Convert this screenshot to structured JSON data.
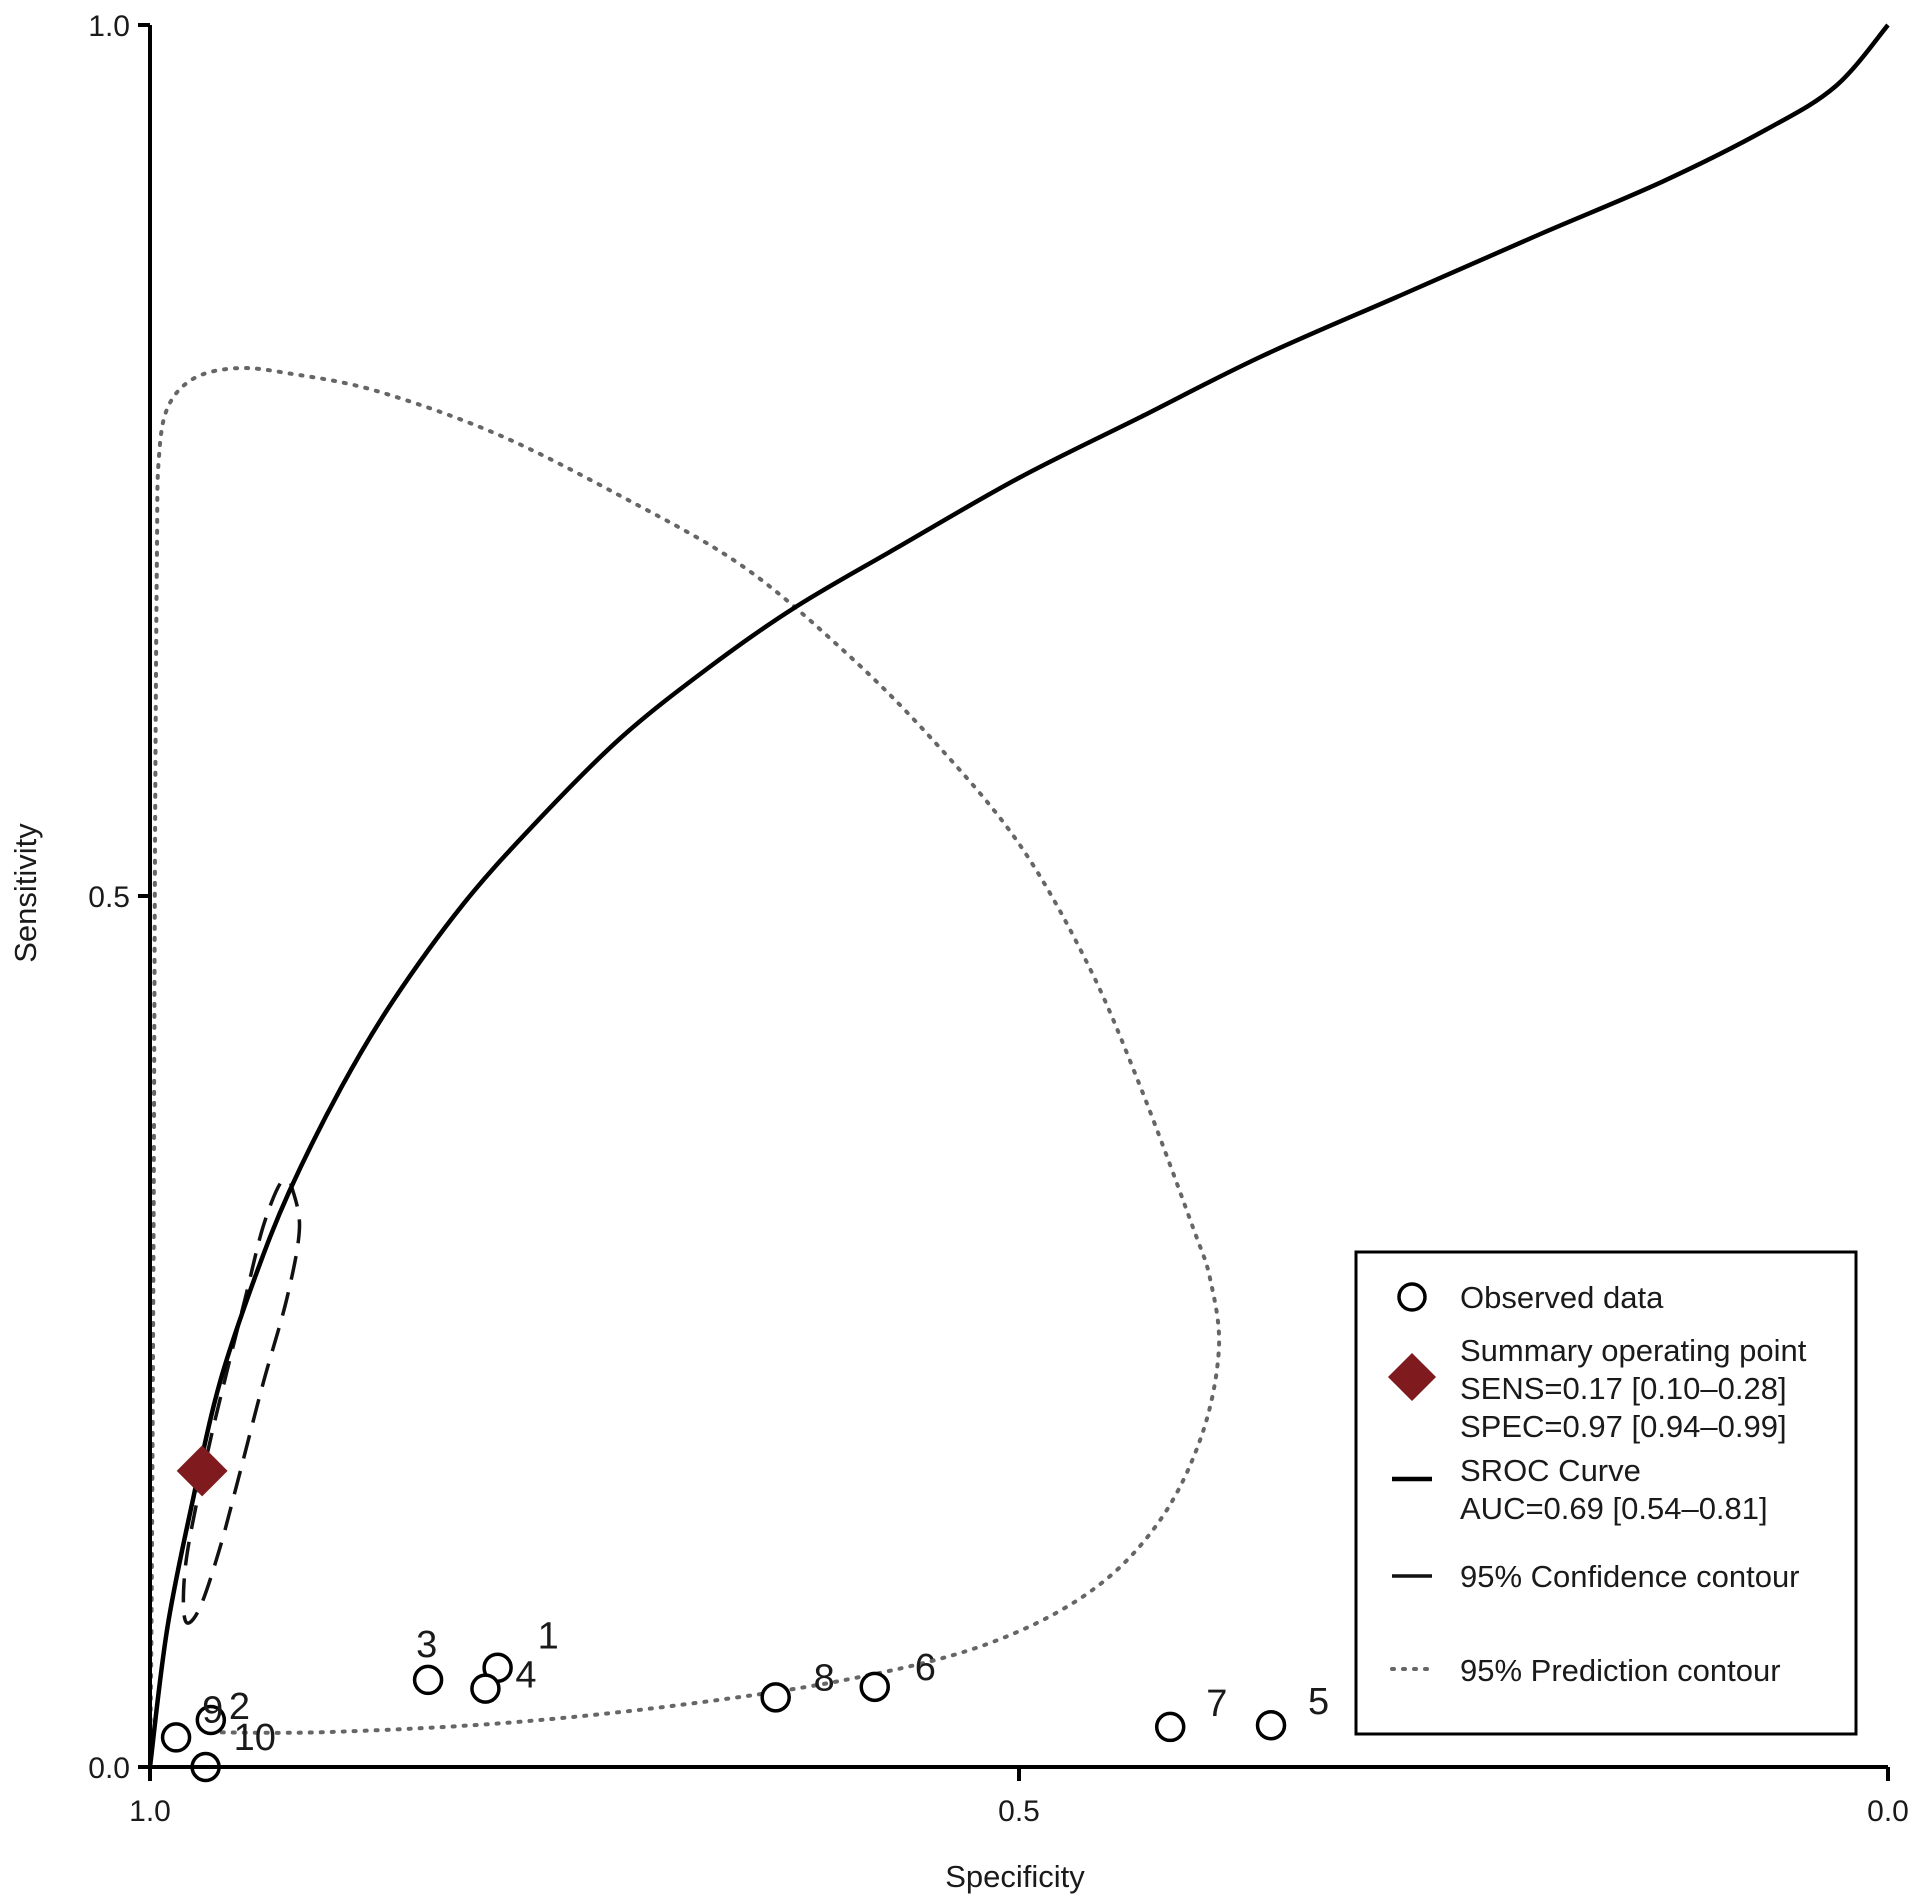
{
  "chart_data": {
    "type": "scatter",
    "x_axis": {
      "label": "Specificity",
      "reversed": true,
      "range": [
        1.0,
        0.0
      ],
      "ticks": [
        {
          "value": 1.0,
          "label": "1.0"
        },
        {
          "value": 0.5,
          "label": "0.5"
        },
        {
          "value": 0.0,
          "label": "0.0"
        }
      ]
    },
    "y_axis": {
      "label": "Sensitivity",
      "range": [
        0.0,
        1.0
      ],
      "ticks": [
        {
          "value": 0.0,
          "label": "0.0"
        },
        {
          "value": 0.5,
          "label": "0.5"
        },
        {
          "value": 1.0,
          "label": "1.0"
        }
      ]
    },
    "grid": false,
    "observed_data": [
      {
        "label": "1",
        "spec": 0.8,
        "sens": 0.057
      },
      {
        "label": "2",
        "spec": 0.965,
        "sens": 0.027
      },
      {
        "label": "3",
        "spec": 0.84,
        "sens": 0.05
      },
      {
        "label": "4",
        "spec": 0.807,
        "sens": 0.045
      },
      {
        "label": "5",
        "spec": 0.355,
        "sens": 0.024
      },
      {
        "label": "6",
        "spec": 0.583,
        "sens": 0.046
      },
      {
        "label": "7",
        "spec": 0.413,
        "sens": 0.023
      },
      {
        "label": "8",
        "spec": 0.64,
        "sens": 0.04
      },
      {
        "label": "9",
        "spec": 0.985,
        "sens": 0.017
      },
      {
        "label": "10",
        "spec": 0.968,
        "sens": 0.0
      }
    ],
    "summary_point": {
      "spec": 0.97,
      "sens": 0.17,
      "color": "#7f1a1e"
    },
    "sroc_curve": [
      [
        1.0,
        0.0
      ],
      [
        0.99,
        0.08
      ],
      [
        0.975,
        0.155
      ],
      [
        0.96,
        0.22
      ],
      [
        0.94,
        0.28
      ],
      [
        0.92,
        0.33
      ],
      [
        0.89,
        0.39
      ],
      [
        0.86,
        0.44
      ],
      [
        0.82,
        0.495
      ],
      [
        0.78,
        0.54
      ],
      [
        0.73,
        0.59
      ],
      [
        0.68,
        0.63
      ],
      [
        0.63,
        0.665
      ],
      [
        0.57,
        0.7
      ],
      [
        0.5,
        0.74
      ],
      [
        0.43,
        0.775
      ],
      [
        0.36,
        0.81
      ],
      [
        0.28,
        0.845
      ],
      [
        0.2,
        0.88
      ],
      [
        0.13,
        0.91
      ],
      [
        0.07,
        0.94
      ],
      [
        0.03,
        0.965
      ],
      [
        0.0,
        1.0
      ]
    ],
    "confidence_contour": [
      [
        0.919,
        0.335
      ],
      [
        0.914,
        0.31
      ],
      [
        0.921,
        0.27
      ],
      [
        0.935,
        0.22
      ],
      [
        0.948,
        0.17
      ],
      [
        0.96,
        0.125
      ],
      [
        0.972,
        0.09
      ],
      [
        0.98,
        0.085
      ],
      [
        0.979,
        0.12
      ],
      [
        0.967,
        0.18
      ],
      [
        0.955,
        0.23
      ],
      [
        0.945,
        0.27
      ],
      [
        0.935,
        0.31
      ],
      [
        0.925,
        0.335
      ],
      [
        0.919,
        0.335
      ]
    ],
    "prediction_contour": [
      [
        0.965,
        0.02
      ],
      [
        0.9,
        0.02
      ],
      [
        0.8,
        0.025
      ],
      [
        0.7,
        0.035
      ],
      [
        0.6,
        0.05
      ],
      [
        0.52,
        0.07
      ],
      [
        0.46,
        0.1
      ],
      [
        0.42,
        0.14
      ],
      [
        0.395,
        0.19
      ],
      [
        0.385,
        0.24
      ],
      [
        0.39,
        0.28
      ],
      [
        0.4,
        0.31
      ],
      [
        0.43,
        0.39
      ],
      [
        0.46,
        0.46
      ],
      [
        0.5,
        0.53
      ],
      [
        0.55,
        0.59
      ],
      [
        0.6,
        0.64
      ],
      [
        0.66,
        0.69
      ],
      [
        0.73,
        0.73
      ],
      [
        0.8,
        0.765
      ],
      [
        0.87,
        0.79
      ],
      [
        0.92,
        0.8
      ],
      [
        0.95,
        0.803
      ],
      [
        0.975,
        0.797
      ],
      [
        0.99,
        0.78
      ],
      [
        0.995,
        0.75
      ],
      [
        0.996,
        0.7
      ],
      [
        0.997,
        0.55
      ],
      [
        0.998,
        0.3
      ],
      [
        0.999,
        0.1
      ],
      [
        1.0,
        0.0
      ]
    ],
    "legend": {
      "position": "bottom-right",
      "items": [
        {
          "symbol": "circle",
          "lines": [
            "Observed data"
          ]
        },
        {
          "symbol": "diamond",
          "lines": [
            "Summary operating point",
            "SENS=0.17 [0.10–0.28]",
            "SPEC=0.97 [0.94–0.99]"
          ]
        },
        {
          "symbol": "solid-line",
          "lines": [
            "SROC Curve",
            "AUC=0.69 [0.54–0.81]"
          ]
        },
        {
          "symbol": "dash-line",
          "lines": [
            "95% Confidence contour"
          ]
        },
        {
          "symbol": "dotted-line",
          "lines": [
            "95% Prediction contour"
          ]
        }
      ]
    }
  }
}
